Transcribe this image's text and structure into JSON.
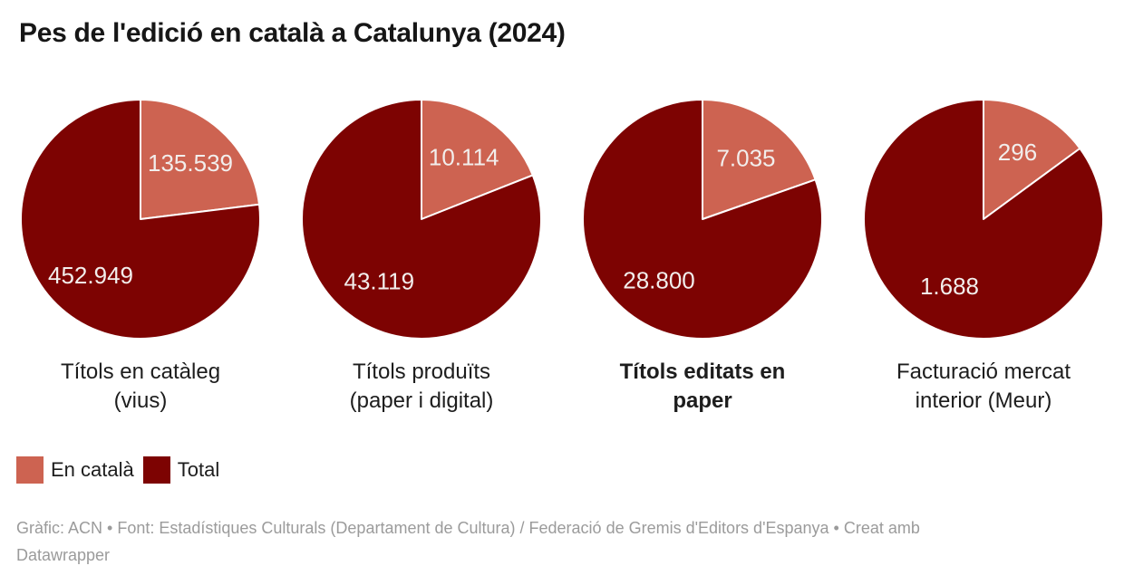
{
  "title": "Pes de l'edició en català a Catalunya (2024)",
  "chart_data": {
    "type": "pie",
    "layout": "four side-by-side two-slice pies, slices start at 12 o'clock and run clockwise, value labels inside slices",
    "colors": {
      "catala": "#cd6351",
      "total": "#7d0302",
      "value_label": "#f2eeec",
      "slice_stroke": "#ffffff"
    },
    "legend": [
      {
        "key": "catala",
        "label": "En català"
      },
      {
        "key": "total",
        "label": "Total"
      }
    ],
    "pies": [
      {
        "category_line1": "Títols en catàleg",
        "category_line2": "(vius)",
        "bold": false,
        "catala": 135539,
        "total": 452949,
        "catala_display": "135.539",
        "total_display": "452.949"
      },
      {
        "category_line1": "Títols produïts",
        "category_line2": "(paper i digital)",
        "bold": false,
        "catala": 10114,
        "total": 43119,
        "catala_display": "10.114",
        "total_display": "43.119"
      },
      {
        "category_line1": "Títols editats en",
        "category_line2": "paper",
        "bold": true,
        "catala": 7035,
        "total": 28800,
        "catala_display": "7.035",
        "total_display": "28.800"
      },
      {
        "category_line1": "Facturació mercat",
        "category_line2": "interior (Meur)",
        "bold": false,
        "catala": 296,
        "total": 1688,
        "catala_display": "296",
        "total_display": "1.688"
      }
    ]
  },
  "footer": {
    "line1": "Gràfic: ACN • Font: Estadístiques Culturals (Departament de Cultura) / Federació de Gremis d'Editors d'Espanya • Creat amb",
    "line2": "Datawrapper"
  }
}
